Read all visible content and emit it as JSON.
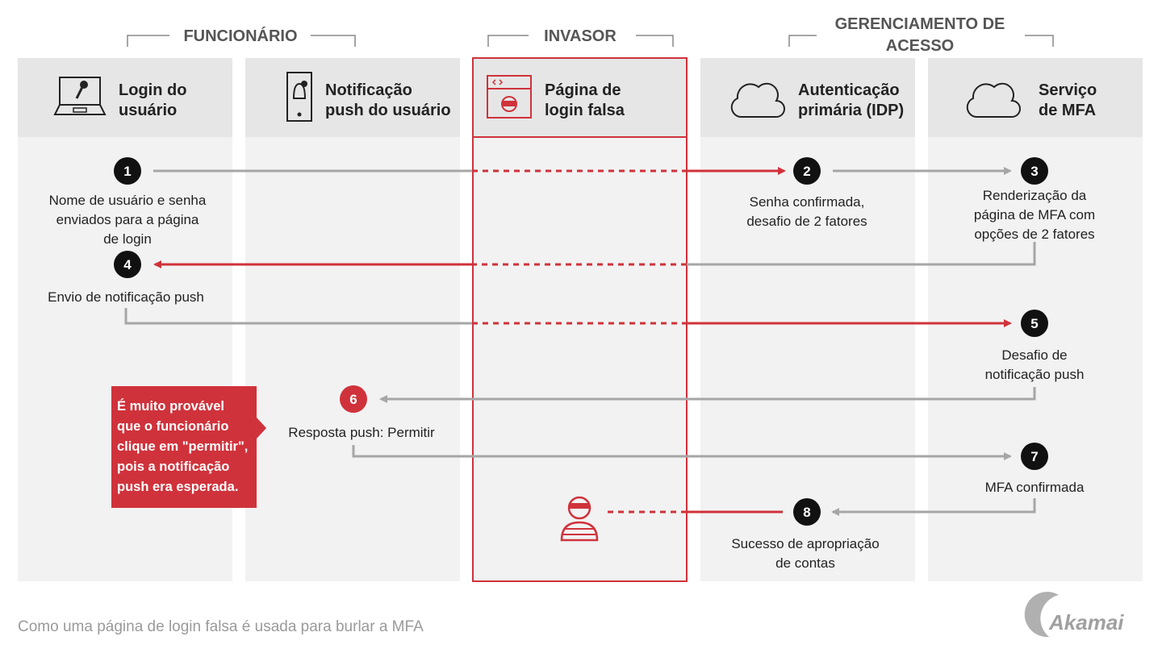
{
  "groups": {
    "employee": "FUNCIONÁRIO",
    "attacker": "INVASOR",
    "access_mgmt": [
      "GERENCIAMENTO DE",
      "ACESSO"
    ]
  },
  "columns": [
    {
      "icon": "laptop-key-icon",
      "title": [
        "Login do",
        "usuário"
      ]
    },
    {
      "icon": "phone-bell-icon",
      "title": [
        "Notificação",
        "push do usuário"
      ]
    },
    {
      "icon": "fake-page-icon",
      "title": [
        "Página de",
        "login falsa"
      ]
    },
    {
      "icon": "cloud-icon",
      "title": [
        "Autenticação",
        "primária (IDP)"
      ]
    },
    {
      "icon": "cloud-icon",
      "title": [
        "Serviço",
        "de MFA"
      ]
    }
  ],
  "steps": [
    {
      "n": "1",
      "text": [
        "Nome de usuário e senha",
        "enviados para a página",
        "de login"
      ]
    },
    {
      "n": "2",
      "text": [
        "Senha confirmada,",
        "desafio de 2 fatores"
      ]
    },
    {
      "n": "3",
      "text": [
        "Renderização da",
        "página de MFA com",
        "opções de 2 fatores"
      ]
    },
    {
      "n": "4",
      "text": [
        "Envio de notificação push"
      ]
    },
    {
      "n": "5",
      "text": [
        "Desafio de",
        "notificação push"
      ]
    },
    {
      "n": "6",
      "text": [
        "Resposta push: Permitir"
      ]
    },
    {
      "n": "7",
      "text": [
        "MFA confirmada"
      ]
    },
    {
      "n": "8",
      "text": [
        "Sucesso de apropriação",
        "de contas"
      ]
    }
  ],
  "callout": [
    "É muito provável",
    "que o funcionário",
    "clique em \"permitir\",",
    "pois a notificação",
    "push era esperada."
  ],
  "caption": "Como uma página de login falsa é usada para burlar a MFA",
  "logo": "Akamai",
  "colors": {
    "red": "#d0323b",
    "gray_line": "#a6a6a6",
    "header_bg": "#e6e6e6",
    "lane_bg": "#f2f2f2",
    "black": "#111111"
  }
}
